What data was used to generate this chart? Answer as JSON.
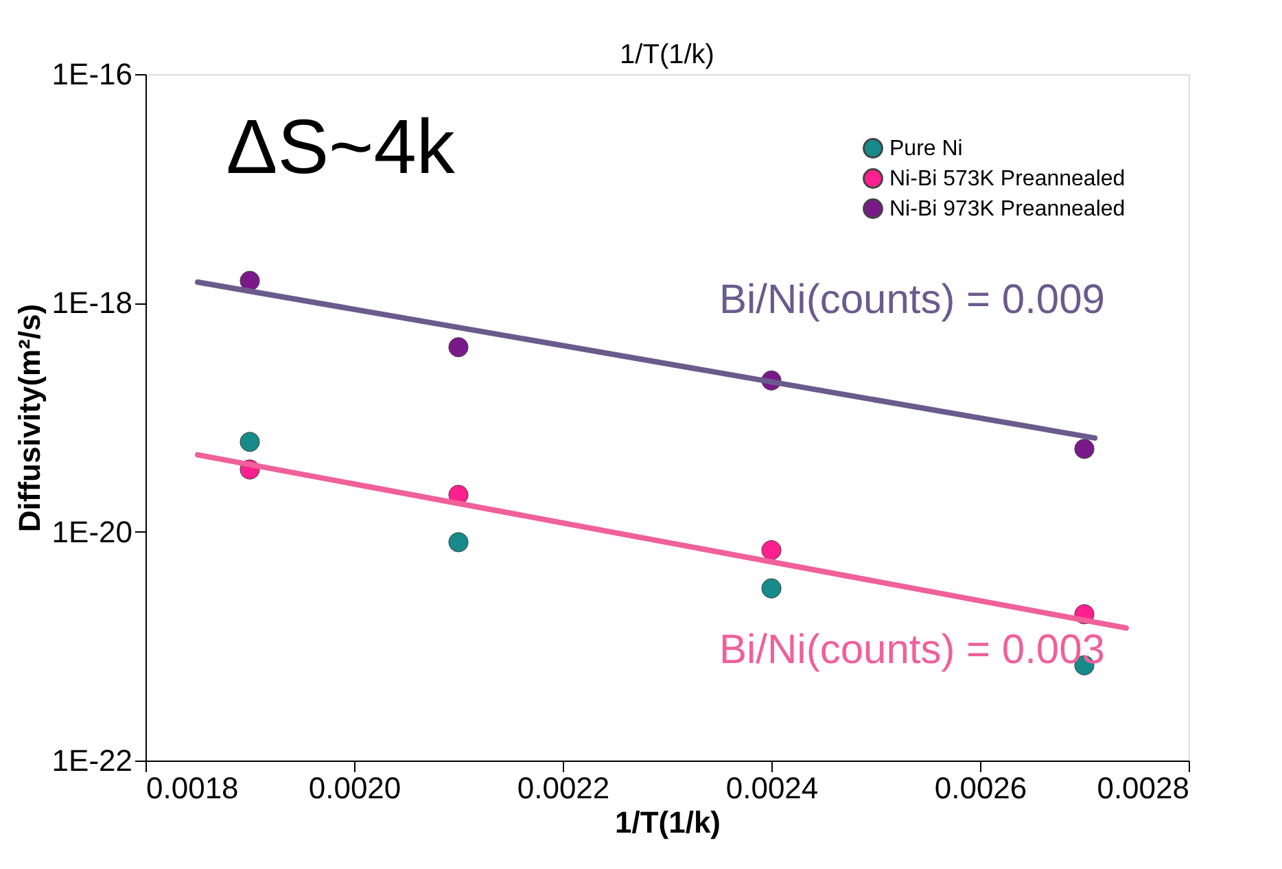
{
  "chart_data": {
    "type": "scatter",
    "xlabel": "1/T(1/k)",
    "x2label": "1/T(1/k)",
    "ylabel": "Diffusivity(m²/s)",
    "x": [
      0.0019,
      0.0021,
      0.0024,
      0.0027
    ],
    "series": [
      {
        "name": "Pure Ni",
        "color": "#178a8a",
        "values": [
          6.1e-20,
          8.1e-21,
          3.2e-21,
          6.8e-22
        ]
      },
      {
        "name": "Ni-Bi 573K Preannealed",
        "color": "#ff1f8e",
        "values": [
          3.5e-20,
          2.1e-20,
          6.9e-21,
          1.9e-21
        ]
      },
      {
        "name": "Ni-Bi 973K Preannealed",
        "color": "#7a1a8a",
        "values": [
          1.56e-18,
          4.1e-19,
          2.1e-19,
          5.3e-20
        ]
      },
      {
        "type": "line",
        "marker": "none",
        "color": "#6b5a8c",
        "x": [
          0.00185,
          0.00271
        ],
        "values": [
          1.52e-18,
          6.6e-20
        ]
      },
      {
        "type": "line",
        "marker": "none",
        "color": "#f0609a",
        "x": [
          0.00185,
          0.00274
        ],
        "values": [
          4.7e-20,
          1.44e-21
        ]
      }
    ],
    "annotations": [
      "ΔS~4k",
      "Bi/Ni(counts) = 0.009",
      "Bi/Ni(counts) = 0.003"
    ],
    "xlim": [
      0.0018,
      0.0028
    ],
    "xticks": [
      {
        "value": 0.0018,
        "label": "0.0018"
      },
      {
        "value": 0.002,
        "label": "0.0020"
      },
      {
        "value": 0.0022,
        "label": "0.0022"
      },
      {
        "value": 0.0024,
        "label": "0.0024"
      },
      {
        "value": 0.0026,
        "label": "0.0026"
      },
      {
        "value": 0.0028,
        "label": "0.0028"
      }
    ],
    "ylim": [
      1e-22,
      1e-16
    ],
    "yticks": [
      {
        "value": 1e-22,
        "label": "1E-22"
      },
      {
        "value": 1e-20,
        "label": "1E-20"
      },
      {
        "value": 1e-18,
        "label": "1E-18"
      },
      {
        "value": 1e-16,
        "label": "1E-16"
      }
    ],
    "log": true,
    "grid": false,
    "legend": "top right",
    "marker": "circle"
  }
}
